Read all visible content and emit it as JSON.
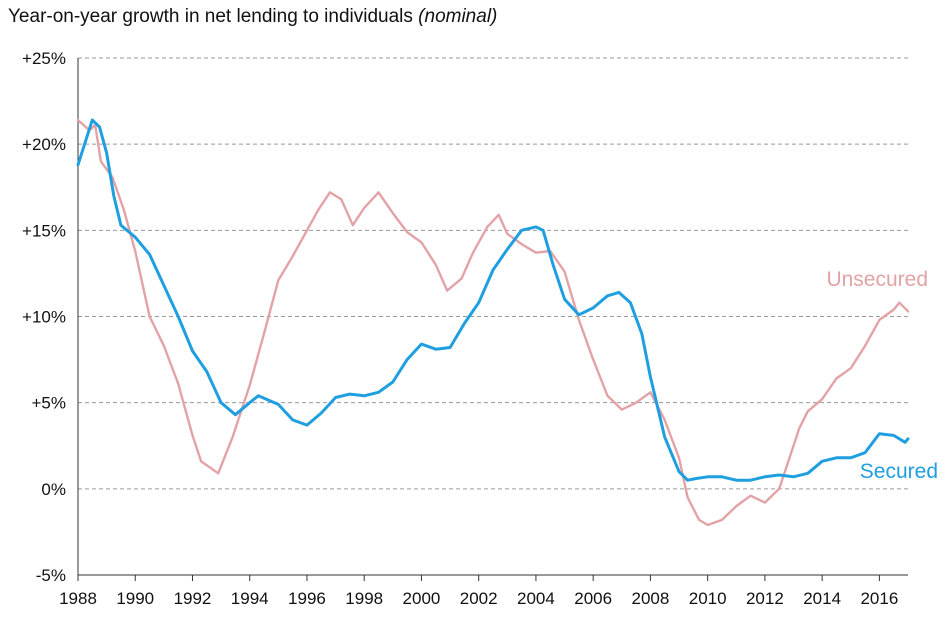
{
  "chart_data": {
    "type": "line",
    "title": "Year-on-year growth in net lending to individuals",
    "subtitle": "(nominal)",
    "xlabel": "",
    "ylabel": "",
    "xlim": [
      1988,
      2017.0
    ],
    "ylim": [
      -5,
      25
    ],
    "x_ticks": [
      "1988",
      "1990",
      "1992",
      "1994",
      "1996",
      "1998",
      "2000",
      "2002",
      "2004",
      "2006",
      "2008",
      "2010",
      "2012",
      "2014",
      "2016"
    ],
    "y_ticks": [
      {
        "value": 25,
        "label": "+25%"
      },
      {
        "value": 20,
        "label": "+20%"
      },
      {
        "value": 15,
        "label": "+15%"
      },
      {
        "value": 10,
        "label": "+10%"
      },
      {
        "value": 5,
        "label": "+5%"
      },
      {
        "value": 0,
        "label": "0%"
      },
      {
        "value": -5,
        "label": "-5%"
      }
    ],
    "grid": "horizontal dashed",
    "series": [
      {
        "name": "Secured",
        "color": "#1f9ee0",
        "points": [
          [
            1988.0,
            18.8
          ],
          [
            1988.5,
            21.4
          ],
          [
            1988.75,
            21.0
          ],
          [
            1989.0,
            19.5
          ],
          [
            1989.25,
            17.0
          ],
          [
            1989.5,
            15.3
          ],
          [
            1990.0,
            14.6
          ],
          [
            1990.5,
            13.6
          ],
          [
            1991.0,
            11.8
          ],
          [
            1991.5,
            10.0
          ],
          [
            1992.0,
            8.0
          ],
          [
            1992.5,
            6.8
          ],
          [
            1993.0,
            5.0
          ],
          [
            1993.5,
            4.3
          ],
          [
            1994.0,
            5.0
          ],
          [
            1994.3,
            5.4
          ],
          [
            1995.0,
            4.9
          ],
          [
            1995.5,
            4.0
          ],
          [
            1996.0,
            3.7
          ],
          [
            1996.5,
            4.4
          ],
          [
            1997.0,
            5.3
          ],
          [
            1997.5,
            5.5
          ],
          [
            1998.0,
            5.4
          ],
          [
            1998.5,
            5.6
          ],
          [
            1999.0,
            6.2
          ],
          [
            1999.5,
            7.5
          ],
          [
            2000.0,
            8.4
          ],
          [
            2000.5,
            8.1
          ],
          [
            2001.0,
            8.2
          ],
          [
            2001.5,
            9.6
          ],
          [
            2002.0,
            10.8
          ],
          [
            2002.5,
            12.7
          ],
          [
            2003.0,
            13.9
          ],
          [
            2003.5,
            15.0
          ],
          [
            2004.0,
            15.2
          ],
          [
            2004.25,
            15.0
          ],
          [
            2004.6,
            13.0
          ],
          [
            2005.0,
            11.0
          ],
          [
            2005.5,
            10.1
          ],
          [
            2006.0,
            10.5
          ],
          [
            2006.5,
            11.2
          ],
          [
            2006.9,
            11.4
          ],
          [
            2007.3,
            10.8
          ],
          [
            2007.7,
            9.0
          ],
          [
            2008.0,
            6.5
          ],
          [
            2008.5,
            3.0
          ],
          [
            2009.0,
            1.0
          ],
          [
            2009.3,
            0.5
          ],
          [
            2009.6,
            0.6
          ],
          [
            2010.0,
            0.7
          ],
          [
            2010.5,
            0.7
          ],
          [
            2011.0,
            0.5
          ],
          [
            2011.5,
            0.5
          ],
          [
            2012.0,
            0.7
          ],
          [
            2012.5,
            0.8
          ],
          [
            2013.0,
            0.7
          ],
          [
            2013.5,
            0.9
          ],
          [
            2014.0,
            1.6
          ],
          [
            2014.5,
            1.8
          ],
          [
            2015.0,
            1.8
          ],
          [
            2015.5,
            2.1
          ],
          [
            2016.0,
            3.2
          ],
          [
            2016.5,
            3.1
          ],
          [
            2016.9,
            2.7
          ],
          [
            2017.0,
            2.9
          ]
        ]
      },
      {
        "name": "Unsecured",
        "color": "#e3a3a6",
        "points": [
          [
            1988.0,
            21.4
          ],
          [
            1988.4,
            20.8
          ],
          [
            1988.6,
            21.1
          ],
          [
            1988.8,
            19.0
          ],
          [
            1989.2,
            18.1
          ],
          [
            1989.6,
            16.2
          ],
          [
            1990.0,
            13.8
          ],
          [
            1990.5,
            10.0
          ],
          [
            1991.0,
            8.3
          ],
          [
            1991.5,
            6.1
          ],
          [
            1992.0,
            3.1
          ],
          [
            1992.3,
            1.6
          ],
          [
            1992.9,
            0.9
          ],
          [
            1993.4,
            3.0
          ],
          [
            1994.0,
            6.0
          ],
          [
            1994.5,
            9.0
          ],
          [
            1995.0,
            12.1
          ],
          [
            1995.5,
            13.5
          ],
          [
            1996.0,
            15.0
          ],
          [
            1996.4,
            16.2
          ],
          [
            1996.8,
            17.2
          ],
          [
            1997.2,
            16.8
          ],
          [
            1997.6,
            15.3
          ],
          [
            1998.0,
            16.3
          ],
          [
            1998.5,
            17.2
          ],
          [
            1999.0,
            16.0
          ],
          [
            1999.5,
            14.9
          ],
          [
            2000.0,
            14.3
          ],
          [
            2000.5,
            13.0
          ],
          [
            2000.9,
            11.5
          ],
          [
            2001.4,
            12.2
          ],
          [
            2001.8,
            13.7
          ],
          [
            2002.3,
            15.2
          ],
          [
            2002.7,
            15.9
          ],
          [
            2003.0,
            14.8
          ],
          [
            2003.5,
            14.2
          ],
          [
            2004.0,
            13.7
          ],
          [
            2004.5,
            13.8
          ],
          [
            2005.0,
            12.6
          ],
          [
            2005.5,
            9.8
          ],
          [
            2006.0,
            7.5
          ],
          [
            2006.5,
            5.4
          ],
          [
            2007.0,
            4.6
          ],
          [
            2007.5,
            5.0
          ],
          [
            2008.0,
            5.6
          ],
          [
            2008.5,
            4.0
          ],
          [
            2009.0,
            1.8
          ],
          [
            2009.3,
            -0.5
          ],
          [
            2009.7,
            -1.8
          ],
          [
            2010.0,
            -2.1
          ],
          [
            2010.5,
            -1.8
          ],
          [
            2011.0,
            -1.0
          ],
          [
            2011.5,
            -0.4
          ],
          [
            2012.0,
            -0.8
          ],
          [
            2012.5,
            0.0
          ],
          [
            2012.8,
            1.5
          ],
          [
            2013.2,
            3.5
          ],
          [
            2013.5,
            4.5
          ],
          [
            2014.0,
            5.2
          ],
          [
            2014.5,
            6.4
          ],
          [
            2015.0,
            7.0
          ],
          [
            2015.5,
            8.3
          ],
          [
            2016.0,
            9.8
          ],
          [
            2016.5,
            10.4
          ],
          [
            2016.7,
            10.8
          ],
          [
            2017.0,
            10.3
          ]
        ]
      }
    ]
  }
}
